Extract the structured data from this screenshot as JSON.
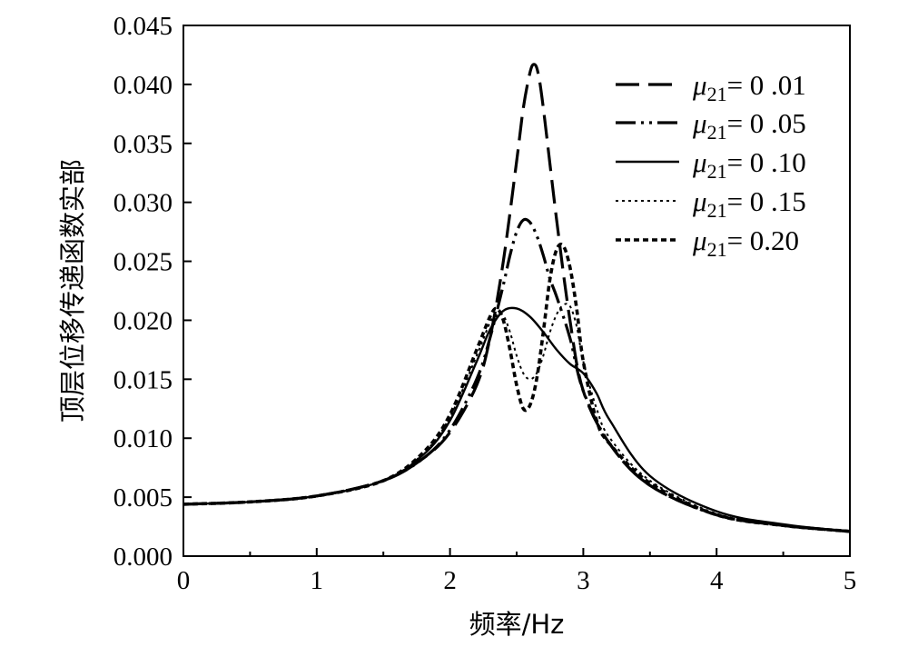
{
  "chart_data": {
    "type": "line",
    "title": "",
    "xlabel": "频率/Hz",
    "ylabel": "顶层位移传递函数实部",
    "xlim": [
      0,
      5
    ],
    "ylim": [
      0,
      0.045
    ],
    "xticks": [
      0,
      1,
      2,
      3,
      4,
      5
    ],
    "xtick_labels": [
      "0",
      "1",
      "2",
      "3",
      "4",
      "5"
    ],
    "yticks": [
      0,
      0.005,
      0.01,
      0.015,
      0.02,
      0.025,
      0.03,
      0.035,
      0.04,
      0.045
    ],
    "ytick_labels": [
      "0.000",
      "0.005",
      "0.010",
      "0.015",
      "0.020",
      "0.025",
      "0.030",
      "0.035",
      "0.040",
      "0.045"
    ],
    "grid": false,
    "legend_position": "top-right",
    "series": [
      {
        "legend": {
          "symbol": "μ",
          "sub": "21",
          "text": "= 0 .01"
        },
        "dash": "26,10",
        "x": [
          0,
          0.5,
          1.0,
          1.5,
          1.8,
          2.0,
          2.2,
          2.3,
          2.4,
          2.5,
          2.55,
          2.6,
          2.63,
          2.66,
          2.7,
          2.8,
          2.9,
          3.0,
          3.2,
          3.5,
          4.0,
          4.5,
          5.0
        ],
        "y": [
          0.0044,
          0.0046,
          0.0051,
          0.0064,
          0.0083,
          0.0105,
          0.0145,
          0.0185,
          0.025,
          0.0335,
          0.038,
          0.041,
          0.0417,
          0.041,
          0.038,
          0.0285,
          0.02,
          0.014,
          0.0095,
          0.006,
          0.0035,
          0.0026,
          0.0021
        ]
      },
      {
        "legend": {
          "symbol": "μ",
          "sub": "21",
          "text": "= 0 .05"
        },
        "dash": "22,6,3,6,3,6",
        "x": [
          0,
          0.5,
          1.0,
          1.5,
          1.8,
          2.0,
          2.2,
          2.3,
          2.4,
          2.45,
          2.5,
          2.55,
          2.6,
          2.65,
          2.7,
          2.75,
          2.8,
          2.9,
          3.0,
          3.2,
          3.5,
          4.0,
          4.5,
          5.0
        ],
        "y": [
          0.0044,
          0.0046,
          0.0051,
          0.0064,
          0.0083,
          0.0107,
          0.015,
          0.0185,
          0.023,
          0.0255,
          0.0275,
          0.0285,
          0.0283,
          0.0272,
          0.0255,
          0.0235,
          0.022,
          0.0185,
          0.014,
          0.0095,
          0.006,
          0.0035,
          0.0026,
          0.0021
        ]
      },
      {
        "legend": {
          "symbol": "μ",
          "sub": "21",
          "text": "= 0 .10"
        },
        "dash": "",
        "x": [
          0,
          0.5,
          1.0,
          1.5,
          1.8,
          2.0,
          2.2,
          2.3,
          2.4,
          2.5,
          2.6,
          2.7,
          2.8,
          2.9,
          3.0,
          3.1,
          3.2,
          3.5,
          4.0,
          4.5,
          5.0
        ],
        "y": [
          0.0044,
          0.0046,
          0.0051,
          0.0064,
          0.0086,
          0.0115,
          0.0165,
          0.0192,
          0.0208,
          0.021,
          0.0203,
          0.019,
          0.0175,
          0.0163,
          0.0155,
          0.0138,
          0.0115,
          0.0068,
          0.0038,
          0.0027,
          0.0021
        ]
      },
      {
        "legend": {
          "symbol": "μ",
          "sub": "21",
          "text": "= 0 .15"
        },
        "dash": "3,4",
        "x": [
          0,
          0.5,
          1.0,
          1.5,
          1.8,
          2.0,
          2.2,
          2.3,
          2.35,
          2.4,
          2.45,
          2.5,
          2.55,
          2.6,
          2.65,
          2.7,
          2.75,
          2.8,
          2.85,
          2.9,
          2.95,
          3.0,
          3.1,
          3.2,
          3.5,
          4.0,
          4.5,
          5.0
        ],
        "y": [
          0.0044,
          0.0046,
          0.0051,
          0.0064,
          0.0087,
          0.0118,
          0.017,
          0.0198,
          0.0205,
          0.0204,
          0.019,
          0.017,
          0.0155,
          0.015,
          0.0155,
          0.017,
          0.019,
          0.0205,
          0.0213,
          0.0212,
          0.0195,
          0.0165,
          0.0125,
          0.01,
          0.0064,
          0.0036,
          0.0026,
          0.0021
        ]
      },
      {
        "legend": {
          "symbol": "μ",
          "sub": "21",
          "text": "= 0.20"
        },
        "dash": "6,4",
        "x": [
          0,
          0.5,
          1.0,
          1.5,
          1.8,
          2.0,
          2.2,
          2.3,
          2.35,
          2.4,
          2.45,
          2.5,
          2.55,
          2.6,
          2.65,
          2.7,
          2.75,
          2.8,
          2.85,
          2.9,
          2.95,
          3.0,
          3.1,
          3.2,
          3.5,
          4.0,
          4.5,
          5.0
        ],
        "y": [
          0.0044,
          0.0046,
          0.0051,
          0.0064,
          0.0088,
          0.012,
          0.0175,
          0.0203,
          0.021,
          0.02,
          0.0175,
          0.0145,
          0.0125,
          0.0128,
          0.015,
          0.019,
          0.0235,
          0.026,
          0.0263,
          0.0245,
          0.021,
          0.0165,
          0.0115,
          0.0095,
          0.0062,
          0.0035,
          0.0026,
          0.0021
        ]
      }
    ]
  }
}
